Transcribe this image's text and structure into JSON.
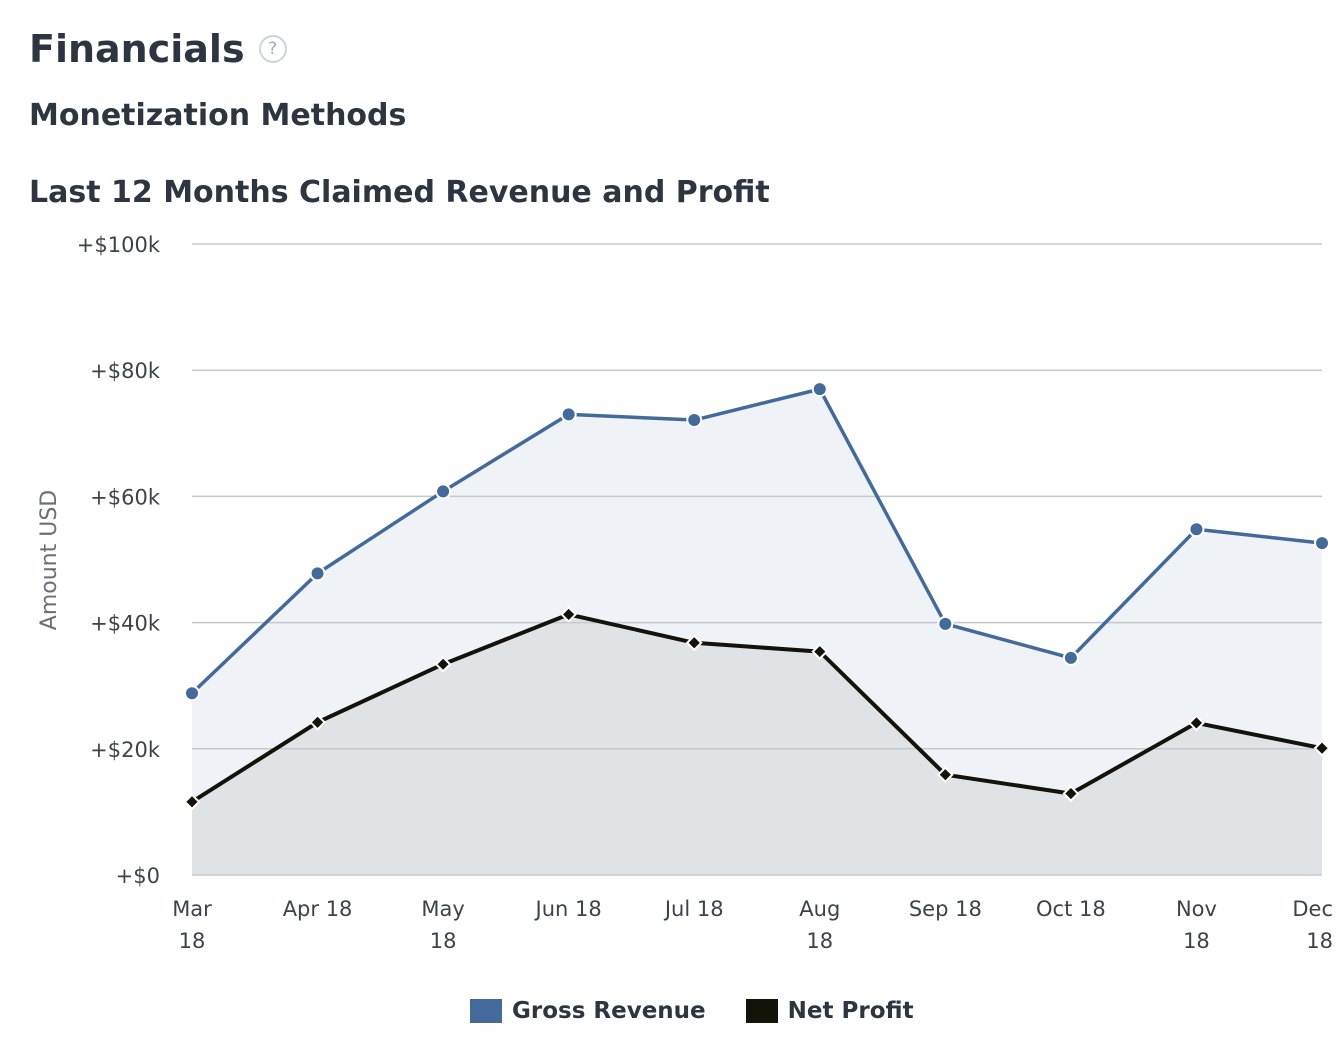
{
  "header": {
    "title": "Financials",
    "help_icon": "?",
    "section_title": "Monetization Methods"
  },
  "chart_data": {
    "type": "area",
    "title": "Last 12 Months Claimed Revenue and Profit",
    "ylabel": "Amount USD",
    "xlabel": "",
    "categories": [
      [
        "Mar",
        "18"
      ],
      [
        "Apr 18"
      ],
      [
        "May",
        "18"
      ],
      [
        "Jun 18"
      ],
      [
        "Jul 18"
      ],
      [
        "Aug",
        "18"
      ],
      [
        "Sep 18"
      ],
      [
        "Oct 18"
      ],
      [
        "Nov",
        "18"
      ],
      [
        "Dec",
        "18"
      ]
    ],
    "y_ticks": [
      0,
      20000,
      40000,
      60000,
      80000,
      100000
    ],
    "y_tick_labels": [
      "+$0",
      "+$20k",
      "+$40k",
      "+$60k",
      "+$80k",
      "+$100k"
    ],
    "ylim": [
      0,
      100000
    ],
    "grid": true,
    "legend_position": "bottom-center",
    "series": [
      {
        "name": "Gross Revenue",
        "color": "#436a9a",
        "fill": "#eff2f6",
        "marker": "circle",
        "values": [
          28800,
          47800,
          60800,
          73000,
          72100,
          77000,
          39800,
          34400,
          54800,
          52600
        ]
      },
      {
        "name": "Net Profit",
        "color": "#14130a",
        "fill": "#e0e3e6",
        "marker": "diamond",
        "values": [
          11600,
          24200,
          33400,
          41300,
          36800,
          35400,
          15900,
          12900,
          24100,
          20100
        ]
      }
    ]
  }
}
